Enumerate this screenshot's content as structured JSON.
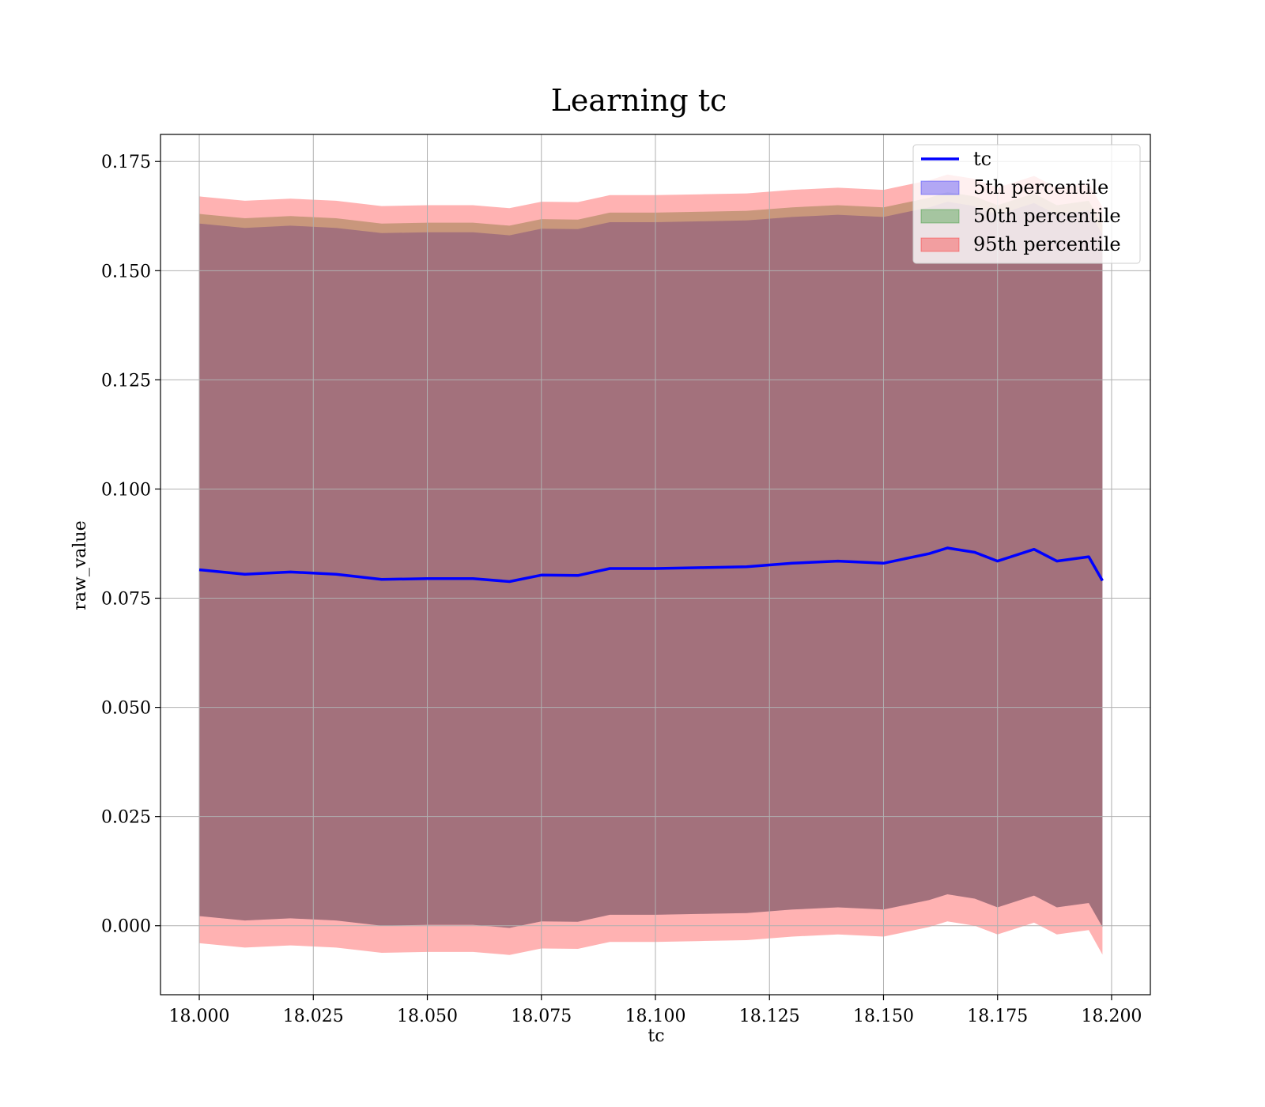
{
  "chart_data": {
    "type": "area",
    "title": "Learning tc",
    "xlabel": "tc",
    "ylabel": "raw_value",
    "xlim": [
      17.9915,
      18.2085
    ],
    "ylim": [
      -0.0158,
      0.1812
    ],
    "xticks": [
      18.0,
      18.025,
      18.05,
      18.075,
      18.1,
      18.125,
      18.15,
      18.175,
      18.2
    ],
    "xtick_labels": [
      "18.000",
      "18.025",
      "18.050",
      "18.075",
      "18.100",
      "18.125",
      "18.150",
      "18.175",
      "18.200"
    ],
    "yticks": [
      0.0,
      0.025,
      0.05,
      0.075,
      0.1,
      0.125,
      0.15,
      0.175
    ],
    "ytick_labels": [
      "0.000",
      "0.025",
      "0.050",
      "0.075",
      "0.100",
      "0.125",
      "0.150",
      "0.175"
    ],
    "grid": true,
    "legend_position": "top-right",
    "x": [
      18.0,
      18.01,
      18.02,
      18.03,
      18.04,
      18.05,
      18.06,
      18.068,
      18.075,
      18.083,
      18.09,
      18.1,
      18.11,
      18.12,
      18.13,
      18.14,
      18.15,
      18.16,
      18.164,
      18.17,
      18.175,
      18.183,
      18.188,
      18.195,
      18.198
    ],
    "series": [
      {
        "name": "tc",
        "kind": "line",
        "color": "#0000ff",
        "values": [
          0.0815,
          0.0805,
          0.081,
          0.0805,
          0.0793,
          0.0795,
          0.0795,
          0.0788,
          0.0803,
          0.0802,
          0.0818,
          0.0818,
          0.082,
          0.0822,
          0.083,
          0.0835,
          0.083,
          0.0852,
          0.0865,
          0.0855,
          0.0835,
          0.0862,
          0.0835,
          0.0845,
          0.079
        ]
      },
      {
        "name": "5th percentile",
        "kind": "band",
        "color": "#0000ff",
        "lower": [
          0.0022,
          0.0012,
          0.0017,
          0.0012,
          0.0,
          0.0002,
          0.0002,
          -0.0005,
          0.001,
          0.0009,
          0.0025,
          0.0025,
          0.0027,
          0.0029,
          0.0037,
          0.0042,
          0.0037,
          0.0059,
          0.0072,
          0.0062,
          0.0042,
          0.0069,
          0.0042,
          0.0052,
          -0.0003
        ],
        "upper": [
          0.1608,
          0.1598,
          0.1603,
          0.1598,
          0.1586,
          0.1588,
          0.1588,
          0.1581,
          0.1596,
          0.1595,
          0.1611,
          0.1611,
          0.1613,
          0.1615,
          0.1623,
          0.1628,
          0.1623,
          0.1645,
          0.1658,
          0.1648,
          0.1628,
          0.1655,
          0.1628,
          0.1638,
          0.1583
        ]
      },
      {
        "name": "50th percentile",
        "kind": "band",
        "color": "#008000",
        "lower": [
          0.0022,
          0.0012,
          0.0017,
          0.0012,
          0.0,
          0.0002,
          0.0002,
          -0.0005,
          0.001,
          0.0009,
          0.0025,
          0.0025,
          0.0027,
          0.0029,
          0.0037,
          0.0042,
          0.0037,
          0.0059,
          0.0072,
          0.0062,
          0.0042,
          0.0069,
          0.0042,
          0.0052,
          -0.0003
        ],
        "upper": [
          0.163,
          0.162,
          0.1625,
          0.162,
          0.1608,
          0.161,
          0.161,
          0.1603,
          0.1618,
          0.1617,
          0.1633,
          0.1633,
          0.1635,
          0.1637,
          0.1645,
          0.165,
          0.1645,
          0.1667,
          0.168,
          0.167,
          0.165,
          0.1677,
          0.165,
          0.166,
          0.1605
        ]
      },
      {
        "name": "95th percentile",
        "kind": "band",
        "color": "#ff0000",
        "lower": [
          -0.004,
          -0.005,
          -0.0045,
          -0.005,
          -0.0062,
          -0.006,
          -0.006,
          -0.0067,
          -0.0052,
          -0.0053,
          -0.0037,
          -0.0037,
          -0.0035,
          -0.0033,
          -0.0025,
          -0.002,
          -0.0025,
          -0.0003,
          0.001,
          0.0,
          -0.002,
          0.0007,
          -0.002,
          -0.001,
          -0.0066
        ],
        "upper": [
          0.167,
          0.166,
          0.1665,
          0.166,
          0.1648,
          0.165,
          0.165,
          0.1643,
          0.1658,
          0.1657,
          0.1673,
          0.1673,
          0.1675,
          0.1677,
          0.1685,
          0.169,
          0.1685,
          0.1707,
          0.172,
          0.171,
          0.169,
          0.1717,
          0.169,
          0.17,
          0.1645
        ]
      }
    ]
  }
}
